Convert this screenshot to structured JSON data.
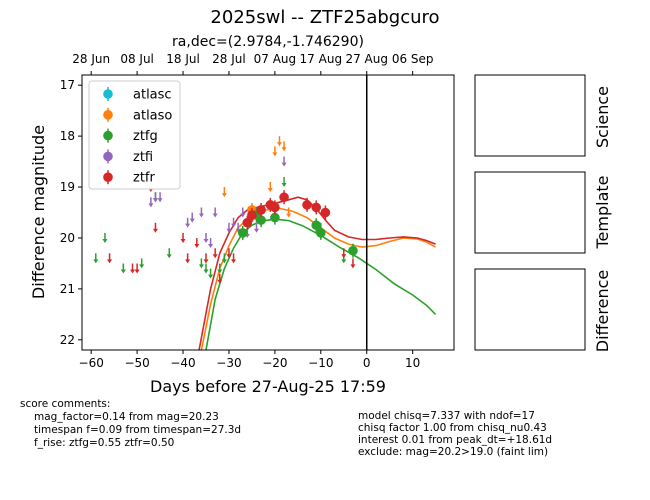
{
  "header": {
    "title": "2025swl -- ZTF25abgcuro",
    "subtitle": "ra,dec=(2.9784,-1.746290)"
  },
  "panels": {
    "science": "Science",
    "template": "Template",
    "difference": "Difference"
  },
  "score": {
    "heading": "score comments:",
    "lines": [
      "mag_factor=0.14 from mag=20.23",
      "timespan f=0.09 from timespan=27.3d",
      "f_rise: ztfg=0.55 ztfr=0.50"
    ]
  },
  "model_info": {
    "lines": [
      "model chisq=7.337 with ndof=17",
      "chisq factor 1.00 from chisq_nu0.43",
      "interest 0.01 from peak_dt=+18.61d",
      "exclude: mag=20.2>19.0 (faint lim)"
    ]
  },
  "chart_data": {
    "type": "scatter",
    "title": "2025swl -- ZTF25abgcuro",
    "xlabel": "Days before 27-Aug-25 17:59",
    "ylabel": "Difference magnitude",
    "xlim": [
      -62,
      19
    ],
    "ylim": [
      22.2,
      16.8
    ],
    "y_inverted": true,
    "x_ticks": [
      -60,
      -50,
      -40,
      -30,
      -20,
      -10,
      0,
      10
    ],
    "y_ticks": [
      17,
      18,
      19,
      20,
      21,
      22
    ],
    "top_axis_ticks": [
      {
        "label": "28 Jun",
        "x": -60
      },
      {
        "label": "08 Jul",
        "x": -50
      },
      {
        "label": "18 Jul",
        "x": -40
      },
      {
        "label": "28 Jul",
        "x": -30
      },
      {
        "label": "07 Aug",
        "x": -20
      },
      {
        "label": "17 Aug",
        "x": -10
      },
      {
        "label": "27 Aug",
        "x": 0
      },
      {
        "label": "06 Sep",
        "x": 10
      }
    ],
    "vline_x": 0,
    "legend_position": "upper-left",
    "legend": [
      "atlasc",
      "atlaso",
      "ztfg",
      "ztfi",
      "ztfr"
    ],
    "colors": {
      "atlasc": "#17becf",
      "atlaso": "#ff7f0e",
      "ztfg": "#2ca02c",
      "ztfi": "#9467bd",
      "ztfr": "#d62728"
    },
    "upper_limits": {
      "atlaso": [
        [
          -31,
          19.1
        ],
        [
          -25,
          19.6
        ],
        [
          -21,
          19.0
        ],
        [
          -20,
          18.3
        ],
        [
          -19,
          18.1
        ],
        [
          -18,
          18.2
        ],
        [
          -17,
          19.5
        ]
      ],
      "ztfg": [
        [
          -59,
          20.4
        ],
        [
          -57,
          20.0
        ],
        [
          -53,
          20.6
        ],
        [
          -49,
          20.5
        ],
        [
          -46,
          19.2
        ],
        [
          -43,
          20.3
        ],
        [
          -36,
          20.5
        ],
        [
          -35,
          20.6
        ],
        [
          -34,
          20.7
        ],
        [
          -32,
          20.6
        ],
        [
          -31,
          20.4
        ],
        [
          -18,
          18.9
        ],
        [
          -10,
          19.8
        ],
        [
          -5,
          20.4
        ]
      ],
      "ztfi": [
        [
          -47,
          19.3
        ],
        [
          -46,
          19.2
        ],
        [
          -45,
          19.2
        ],
        [
          -39,
          19.7
        ],
        [
          -38,
          19.6
        ],
        [
          -36,
          19.5
        ],
        [
          -35,
          20.0
        ],
        [
          -34,
          20.1
        ],
        [
          -33,
          19.5
        ],
        [
          -30,
          19.8
        ],
        [
          -29,
          19.7
        ],
        [
          -28,
          19.8
        ],
        [
          -27,
          19.5
        ],
        [
          -26,
          19.9
        ],
        [
          -24,
          19.8
        ],
        [
          -18,
          18.5
        ]
      ],
      "ztfr": [
        [
          -56,
          20.4
        ],
        [
          -51,
          20.6
        ],
        [
          -50,
          20.6
        ],
        [
          -47,
          19.0
        ],
        [
          -46,
          19.8
        ],
        [
          -40,
          20.0
        ],
        [
          -39,
          20.4
        ],
        [
          -37,
          20.1
        ],
        [
          -35,
          20.4
        ],
        [
          -33,
          20.3
        ],
        [
          -32,
          20.8
        ],
        [
          -30,
          20.3
        ],
        [
          -29,
          20.4
        ],
        [
          -5,
          20.3
        ],
        [
          -3,
          20.5
        ]
      ]
    },
    "detections": {
      "atlaso": [
        [
          -25,
          19.45
        ],
        [
          -20,
          19.4
        ]
      ],
      "ztfg": [
        [
          -27,
          19.9
        ],
        [
          -24,
          19.55
        ],
        [
          -23,
          19.65
        ],
        [
          -20,
          19.6
        ],
        [
          -11,
          19.75
        ],
        [
          -10,
          19.9
        ],
        [
          -3,
          20.25
        ]
      ],
      "ztfr": [
        [
          -26,
          19.7
        ],
        [
          -25,
          19.55
        ],
        [
          -23,
          19.45
        ],
        [
          -21,
          19.35
        ],
        [
          -20,
          19.4
        ],
        [
          -18,
          19.2
        ],
        [
          -13,
          19.35
        ],
        [
          -11,
          19.4
        ],
        [
          -9,
          19.5
        ]
      ]
    },
    "model_curves": {
      "ztfg": [
        [
          -35,
          22.2
        ],
        [
          -33,
          21.2
        ],
        [
          -31,
          20.6
        ],
        [
          -29,
          20.2
        ],
        [
          -27,
          19.9
        ],
        [
          -25,
          19.75
        ],
        [
          -23,
          19.67
        ],
        [
          -20,
          19.63
        ],
        [
          -17,
          19.66
        ],
        [
          -14,
          19.76
        ],
        [
          -10,
          19.95
        ],
        [
          -6,
          20.18
        ],
        [
          -2,
          20.38
        ],
        [
          2,
          20.62
        ],
        [
          6,
          20.9
        ],
        [
          10,
          21.12
        ],
        [
          13,
          21.32
        ],
        [
          15,
          21.5
        ]
      ],
      "ztfo": [
        [
          -36,
          22.2
        ],
        [
          -34,
          21.3
        ],
        [
          -32,
          20.6
        ],
        [
          -30,
          20.15
        ],
        [
          -28,
          19.8
        ],
        [
          -25,
          19.55
        ],
        [
          -22,
          19.45
        ],
        [
          -19,
          19.42
        ],
        [
          -16,
          19.48
        ],
        [
          -13,
          19.6
        ],
        [
          -10,
          19.8
        ],
        [
          -7,
          20.0
        ],
        [
          -4,
          20.12
        ],
        [
          -1,
          20.18
        ],
        [
          2,
          20.15
        ],
        [
          5,
          20.07
        ],
        [
          8,
          20.0
        ],
        [
          11,
          20.02
        ],
        [
          13,
          20.08
        ],
        [
          15,
          20.18
        ]
      ],
      "ztfr": [
        [
          -36.5,
          22.2
        ],
        [
          -34,
          21.0
        ],
        [
          -32,
          20.3
        ],
        [
          -30,
          19.9
        ],
        [
          -28,
          19.6
        ],
        [
          -26,
          19.45
        ],
        [
          -23,
          19.38
        ],
        [
          -20,
          19.32
        ],
        [
          -17,
          19.25
        ],
        [
          -15,
          19.2
        ],
        [
          -13,
          19.25
        ],
        [
          -11,
          19.42
        ],
        [
          -9,
          19.65
        ],
        [
          -7,
          19.85
        ],
        [
          -4,
          19.98
        ],
        [
          -1,
          20.03
        ],
        [
          2,
          20.03
        ],
        [
          5,
          20.0
        ],
        [
          8,
          19.98
        ],
        [
          11,
          20.0
        ],
        [
          13,
          20.05
        ],
        [
          15,
          20.12
        ]
      ]
    }
  }
}
